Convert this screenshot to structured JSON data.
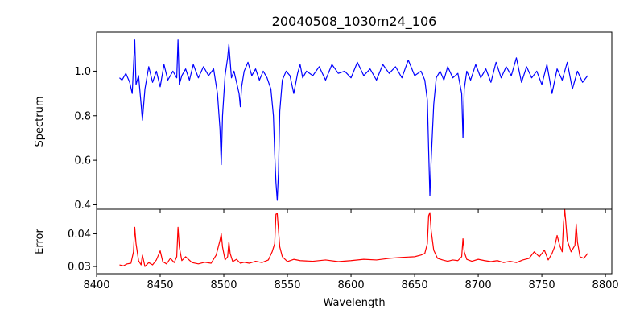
{
  "title": "20040508_1030m24_106",
  "colors": {
    "spectrum": "#0000ff",
    "error": "#ff0000",
    "axes": "#000000",
    "background": "#ffffff"
  },
  "chart_data": [
    {
      "type": "line",
      "title": "20040508_1030m24_106",
      "xlabel": "",
      "ylabel": "Spectrum",
      "xlim": [
        8400,
        8805
      ],
      "ylim": [
        0.38,
        1.175
      ],
      "xticks": [
        8400,
        8450,
        8500,
        8550,
        8600,
        8650,
        8700,
        8750,
        8800
      ],
      "yticks": [
        0.4,
        0.6,
        0.8,
        1.0
      ],
      "ytick_labels": [
        "0.4",
        "0.6",
        "0.8",
        "1.0"
      ],
      "grid": false,
      "series": [
        {
          "color": "#0000ff",
          "x": [
            8418,
            8420,
            8423,
            8426,
            8428,
            8429,
            8430,
            8431,
            8433,
            8435,
            8436,
            8438,
            8441,
            8444,
            8447,
            8450,
            8453,
            8456,
            8460,
            8463,
            8464,
            8465,
            8467,
            8470,
            8473,
            8476,
            8480,
            8484,
            8488,
            8492,
            8495,
            8497,
            8498,
            8499,
            8501,
            8503,
            8504,
            8506,
            8508,
            8510,
            8512,
            8513,
            8514,
            8516,
            8519,
            8522,
            8525,
            8528,
            8531,
            8534,
            8537,
            8539,
            8540,
            8541,
            8542,
            8543,
            8544,
            8546,
            8549,
            8552,
            8555,
            8558,
            8560,
            8562,
            8565,
            8570,
            8575,
            8580,
            8585,
            8590,
            8595,
            8600,
            8605,
            8610,
            8615,
            8620,
            8625,
            8630,
            8635,
            8640,
            8645,
            8650,
            8655,
            8658,
            8660,
            8661,
            8662,
            8663,
            8665,
            8667,
            8670,
            8673,
            8676,
            8680,
            8684,
            8687,
            8688,
            8689,
            8691,
            8694,
            8698,
            8702,
            8706,
            8710,
            8714,
            8718,
            8722,
            8726,
            8730,
            8734,
            8738,
            8742,
            8746,
            8750,
            8754,
            8758,
            8762,
            8766,
            8770,
            8774,
            8778,
            8782,
            8786
          ],
          "values": [
            0.97,
            0.96,
            0.99,
            0.95,
            0.9,
            1.02,
            1.14,
            0.94,
            0.98,
            0.85,
            0.78,
            0.92,
            1.02,
            0.95,
            1.0,
            0.93,
            1.03,
            0.96,
            1.0,
            0.97,
            1.14,
            0.94,
            0.98,
            1.01,
            0.96,
            1.03,
            0.97,
            1.02,
            0.98,
            1.01,
            0.9,
            0.74,
            0.58,
            0.8,
            0.98,
            1.06,
            1.12,
            0.97,
            1.0,
            0.95,
            0.9,
            0.84,
            0.93,
            1.0,
            1.04,
            0.98,
            1.01,
            0.96,
            1.0,
            0.97,
            0.92,
            0.8,
            0.63,
            0.5,
            0.42,
            0.55,
            0.82,
            0.96,
            1.0,
            0.98,
            0.9,
            0.99,
            1.03,
            0.97,
            1.0,
            0.98,
            1.02,
            0.96,
            1.03,
            0.99,
            1.0,
            0.97,
            1.04,
            0.98,
            1.01,
            0.96,
            1.03,
            0.99,
            1.02,
            0.97,
            1.05,
            0.98,
            1.0,
            0.96,
            0.87,
            0.65,
            0.44,
            0.6,
            0.85,
            0.97,
            1.0,
            0.96,
            1.02,
            0.97,
            0.99,
            0.9,
            0.7,
            0.92,
            1.0,
            0.96,
            1.03,
            0.97,
            1.01,
            0.95,
            1.04,
            0.97,
            1.02,
            0.98,
            1.06,
            0.95,
            1.02,
            0.97,
            1.0,
            0.94,
            1.03,
            0.9,
            1.01,
            0.96,
            1.04,
            0.92,
            1.0,
            0.95,
            0.98
          ]
        }
      ]
    },
    {
      "type": "line",
      "title": "",
      "xlabel": "Wavelength",
      "ylabel": "Error",
      "xlim": [
        8400,
        8805
      ],
      "ylim": [
        0.0278,
        0.0475
      ],
      "xticks": [
        8400,
        8450,
        8500,
        8550,
        8600,
        8650,
        8700,
        8750,
        8800
      ],
      "xtick_labels": [
        "8400",
        "8450",
        "8500",
        "8550",
        "8600",
        "8650",
        "8700",
        "8750",
        "8800"
      ],
      "yticks": [
        0.03,
        0.04
      ],
      "ytick_labels": [
        "0.03",
        "0.04"
      ],
      "grid": false,
      "series": [
        {
          "color": "#ff0000",
          "x": [
            8418,
            8421,
            8424,
            8427,
            8429,
            8430,
            8431,
            8433,
            8435,
            8436,
            8438,
            8441,
            8444,
            8447,
            8450,
            8452,
            8455,
            8458,
            8461,
            8463,
            8464,
            8465,
            8467,
            8470,
            8475,
            8480,
            8485,
            8490,
            8494,
            8497,
            8498,
            8499,
            8501,
            8503,
            8504,
            8505,
            8507,
            8510,
            8513,
            8516,
            8520,
            8525,
            8530,
            8535,
            8538,
            8540,
            8541,
            8542,
            8543,
            8544,
            8546,
            8550,
            8555,
            8560,
            8570,
            8580,
            8590,
            8600,
            8610,
            8620,
            8630,
            8640,
            8650,
            8655,
            8658,
            8660,
            8661,
            8662,
            8663,
            8665,
            8668,
            8672,
            8676,
            8680,
            8684,
            8687,
            8688,
            8689,
            8691,
            8695,
            8700,
            8705,
            8710,
            8715,
            8720,
            8725,
            8730,
            8735,
            8740,
            8744,
            8748,
            8752,
            8755,
            8758,
            8760,
            8762,
            8764,
            8766,
            8767,
            8768,
            8770,
            8773,
            8776,
            8777,
            8778,
            8780,
            8783,
            8786
          ],
          "values": [
            0.0305,
            0.0302,
            0.0308,
            0.031,
            0.0345,
            0.042,
            0.037,
            0.0318,
            0.0305,
            0.0335,
            0.03,
            0.0312,
            0.0305,
            0.032,
            0.0348,
            0.0315,
            0.0308,
            0.0325,
            0.0312,
            0.033,
            0.042,
            0.036,
            0.0318,
            0.033,
            0.0312,
            0.0308,
            0.0313,
            0.031,
            0.0335,
            0.038,
            0.04,
            0.036,
            0.032,
            0.033,
            0.0375,
            0.034,
            0.0315,
            0.0322,
            0.031,
            0.0313,
            0.031,
            0.0316,
            0.0312,
            0.032,
            0.0345,
            0.037,
            0.046,
            0.0462,
            0.041,
            0.036,
            0.033,
            0.0315,
            0.0322,
            0.0318,
            0.0316,
            0.032,
            0.0315,
            0.0318,
            0.0322,
            0.032,
            0.0325,
            0.0328,
            0.033,
            0.0335,
            0.034,
            0.037,
            0.0455,
            0.0465,
            0.041,
            0.035,
            0.0325,
            0.032,
            0.0316,
            0.032,
            0.0318,
            0.033,
            0.0385,
            0.0345,
            0.0322,
            0.0316,
            0.0322,
            0.0318,
            0.0315,
            0.0318,
            0.0312,
            0.0316,
            0.0312,
            0.032,
            0.0325,
            0.0345,
            0.033,
            0.035,
            0.032,
            0.034,
            0.036,
            0.0395,
            0.0365,
            0.0345,
            0.043,
            0.0475,
            0.038,
            0.0345,
            0.0365,
            0.043,
            0.0375,
            0.033,
            0.0325,
            0.034
          ]
        }
      ]
    }
  ]
}
